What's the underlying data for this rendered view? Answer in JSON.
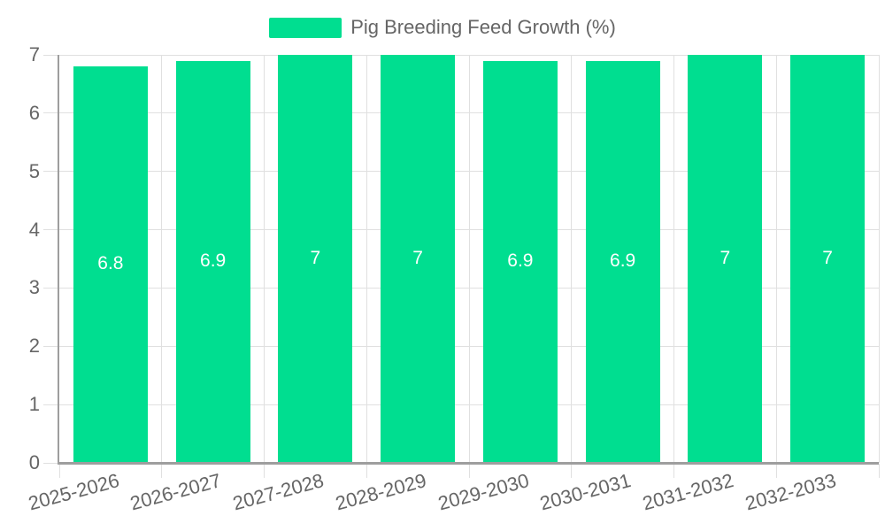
{
  "legend": {
    "label": "Pig Breeding Feed Growth (%)"
  },
  "colors": {
    "bar": "#00DE90",
    "grid_line": "#E0E0E0",
    "axis_line": "#9E9E9E",
    "tick_label": "#666666",
    "legend_text": "#666666",
    "bar_label": "#FFFFFF",
    "background": "#FFFFFF"
  },
  "chart_data": {
    "type": "bar",
    "title": "Pig Breeding Feed Growth (%)",
    "categories": [
      "2025-2026",
      "2026-2027",
      "2027-2028",
      "2028-2029",
      "2029-2030",
      "2030-2031",
      "2031-2032",
      "2032-2033"
    ],
    "series": [
      {
        "name": "Pig Breeding Feed Growth (%)",
        "values": [
          6.8,
          6.9,
          7,
          7,
          6.9,
          6.9,
          7,
          7
        ]
      }
    ],
    "value_labels": [
      "6.8",
      "6.9",
      "7",
      "7",
      "6.9",
      "6.9",
      "7",
      "7"
    ],
    "xlabel": "",
    "ylabel": "",
    "ylim": [
      0,
      7
    ],
    "yticks": [
      0,
      1,
      2,
      3,
      4,
      5,
      6,
      7
    ],
    "grid": "on",
    "legend_position": "top-center",
    "bar_label_position": "inside-middle",
    "x_label_rotation_deg": -15
  }
}
